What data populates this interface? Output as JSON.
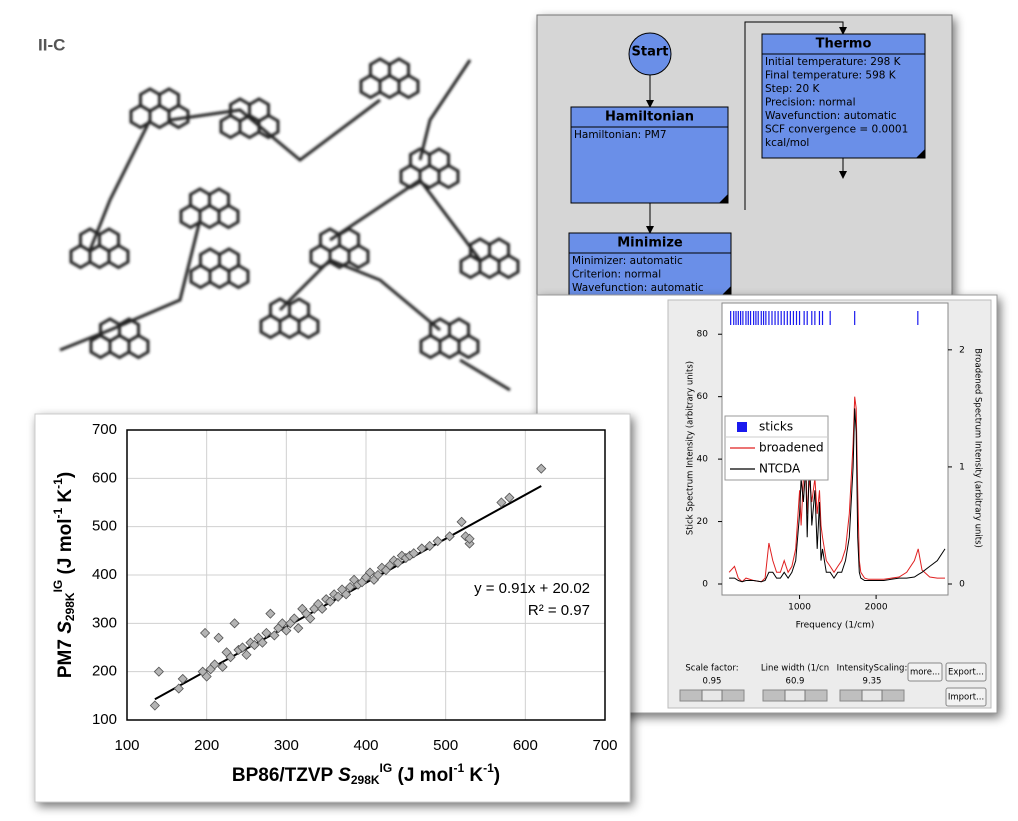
{
  "panel_label": "II-C",
  "workflow": {
    "nodes": [
      {
        "title": "Start"
      },
      {
        "title": "Hamiltonian",
        "lines": [
          "Hamiltonian: PM7"
        ]
      },
      {
        "title": "Minimize",
        "lines": [
          "Minimizer: automatic",
          "Criterion: normal",
          "Wavefunction: automatic"
        ]
      },
      {
        "title": "Thermo",
        "lines": [
          "Initial temperature: 298 K",
          "Final temperature: 598 K",
          "Step: 20 K",
          "Precision: normal",
          "Wavefunction: automatic",
          "SCF convergence = 0.0001",
          "kcal/mol"
        ]
      }
    ]
  },
  "chart_data": [
    {
      "type": "scatter",
      "xlabel": [
        "BP86/TZVP ",
        "S",
        "298K",
        "IG",
        " (J mol",
        "-1",
        " K",
        "-1",
        ")"
      ],
      "ylabel": [
        "PM7 ",
        "S",
        "298K",
        "IG",
        " (J mol",
        "-1",
        " K",
        "-1",
        ")"
      ],
      "annotations": [
        "y = 0.91x + 20.02",
        "R² = 0.97"
      ],
      "trendline": {
        "slope": 0.91,
        "intercept": 20.02
      },
      "x": [
        135,
        140,
        165,
        170,
        195,
        198,
        200,
        205,
        210,
        215,
        220,
        225,
        230,
        235,
        240,
        245,
        250,
        255,
        260,
        265,
        270,
        275,
        280,
        285,
        290,
        295,
        300,
        305,
        310,
        315,
        320,
        325,
        330,
        335,
        340,
        345,
        350,
        355,
        360,
        365,
        370,
        375,
        380,
        385,
        390,
        395,
        400,
        405,
        410,
        415,
        420,
        425,
        430,
        435,
        440,
        445,
        450,
        455,
        460,
        470,
        480,
        490,
        505,
        520,
        525,
        530,
        530,
        570,
        580,
        620
      ],
      "values": [
        130,
        200,
        165,
        185,
        200,
        280,
        190,
        205,
        215,
        270,
        210,
        240,
        230,
        300,
        245,
        250,
        235,
        260,
        255,
        270,
        260,
        280,
        320,
        275,
        290,
        300,
        285,
        300,
        310,
        290,
        330,
        320,
        310,
        330,
        340,
        330,
        350,
        345,
        360,
        355,
        370,
        360,
        375,
        390,
        380,
        385,
        395,
        405,
        390,
        400,
        415,
        410,
        420,
        430,
        425,
        440,
        435,
        440,
        445,
        455,
        460,
        470,
        480,
        510,
        480,
        465,
        475,
        550,
        560,
        620
      ],
      "color": "#b4b4b4",
      "xlim": [
        100,
        700
      ],
      "ylim": [
        100,
        700
      ],
      "xticks": [
        100,
        200,
        300,
        400,
        500,
        600,
        700
      ],
      "yticks": [
        100,
        200,
        300,
        400,
        500,
        600,
        700
      ],
      "grid": true
    },
    {
      "type": "spectrum",
      "xlabel": "Frequency (1/cm)",
      "ylabel": "Stick Spectrum Intensity (arbitrary units)",
      "y2label": "Broadened Spectrum Intensity (arbitrary units)",
      "xlim": [
        0,
        2900
      ],
      "ylim": [
        0,
        90
      ],
      "y2lim": [
        0,
        2.4
      ],
      "xticks": [
        1000,
        2000
      ],
      "yticks": [
        0,
        20,
        40,
        60,
        80
      ],
      "y2ticks": [
        0,
        1,
        2
      ],
      "legend": "upper left",
      "x": [
        80,
        150,
        200,
        250,
        300,
        400,
        500,
        550,
        600,
        650,
        700,
        750,
        800,
        850,
        900,
        950,
        1000,
        1020,
        1050,
        1080,
        1100,
        1130,
        1160,
        1200,
        1230,
        1260,
        1280,
        1300,
        1350,
        1400,
        1450,
        1500,
        1550,
        1600,
        1650,
        1700,
        1720,
        1740,
        1760,
        1780,
        1800,
        1850,
        1900,
        2000,
        2100,
        2200,
        2300,
        2400,
        2500,
        2550,
        2600,
        2700,
        2800,
        2900
      ],
      "sticks": {
        "name": "sticks",
        "color": "#1a1aee",
        "x": [
          100,
          140,
          170,
          200,
          230,
          260,
          300,
          330,
          360,
          400,
          430,
          460,
          500,
          530,
          560,
          600,
          640,
          680,
          720,
          760,
          800,
          840,
          880,
          920,
          960,
          1000,
          1060,
          1100,
          1160,
          1200,
          1260,
          1300,
          1400,
          1720,
          2545
        ]
      },
      "series": [
        {
          "name": "broadened",
          "color": "#e02020",
          "axis": "y2",
          "values": [
            0.1,
            0.15,
            0.05,
            0.02,
            0.05,
            0.03,
            0.02,
            0.05,
            0.35,
            0.2,
            0.1,
            0.1,
            0.2,
            0.1,
            0.15,
            0.3,
            0.8,
            0.5,
            0.9,
            1.1,
            0.6,
            0.9,
            0.7,
            0.9,
            0.6,
            0.8,
            0.5,
            0.4,
            0.2,
            0.15,
            0.1,
            0.15,
            0.2,
            0.3,
            0.6,
            1.2,
            1.6,
            1.5,
            0.8,
            0.2,
            0.1,
            0.05,
            0.04,
            0.04,
            0.04,
            0.05,
            0.06,
            0.1,
            0.2,
            0.3,
            0.12,
            0.06,
            0.05,
            0.05
          ]
        },
        {
          "name": "NTCDA",
          "color": "#000000",
          "axis": "y2",
          "values": [
            0.05,
            0.05,
            0.03,
            0.02,
            0.03,
            0.03,
            0.02,
            0.03,
            0.1,
            0.1,
            0.05,
            0.05,
            0.1,
            0.05,
            0.1,
            0.2,
            0.6,
            0.9,
            0.7,
            1.0,
            0.4,
            1.1,
            0.5,
            0.8,
            0.3,
            0.7,
            0.2,
            0.3,
            0.1,
            0.1,
            0.05,
            0.1,
            0.1,
            0.2,
            0.4,
            1.0,
            1.5,
            1.3,
            0.4,
            0.1,
            0.05,
            0.03,
            0.03,
            0.03,
            0.03,
            0.04,
            0.05,
            0.05,
            0.06,
            0.08,
            0.1,
            0.15,
            0.2,
            0.3
          ]
        }
      ]
    }
  ],
  "spectrum_controls": {
    "sliders": [
      {
        "label": "Scale factor:",
        "value": 0.95
      },
      {
        "label": "Line width (1/cn",
        "value": 60.9
      },
      {
        "label": "IntensityScaling:",
        "value": 9.35
      }
    ],
    "buttons": [
      "more...",
      "Export...",
      "Import..."
    ]
  }
}
